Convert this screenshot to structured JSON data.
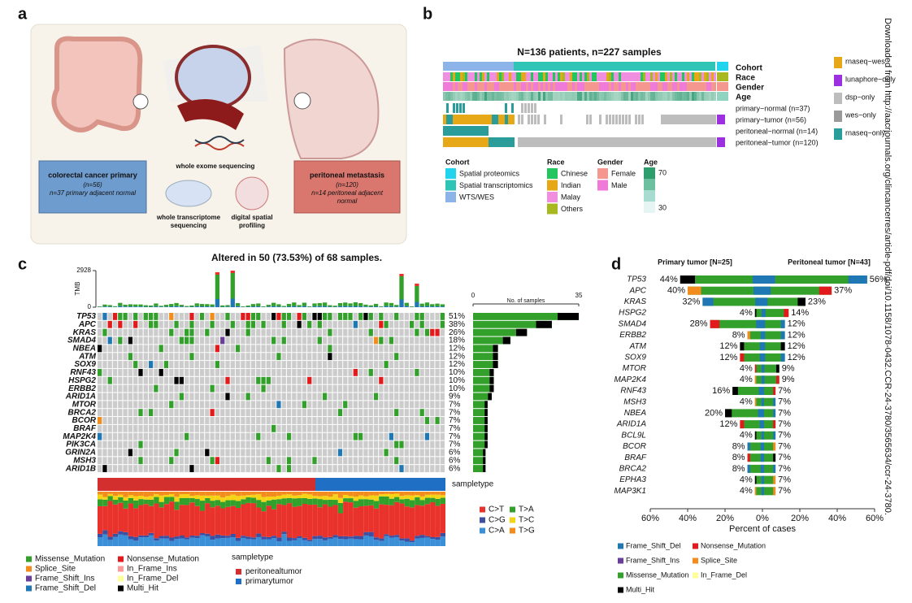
{
  "side_note": "Downloaded from http://aacrjournals.org/clincancerres/article-pdf/doi/10.1158/1078-0432.CCR-24-3780/3565634/ccr-24-3780.",
  "panel_a": {
    "label": "a",
    "steps": [
      [
        "whole exome sequencing"
      ],
      [
        "whole transcriptome",
        "sequencing"
      ],
      [
        "digital spatial",
        "profiling"
      ]
    ],
    "primary": {
      "title": "colorectal cancer primary",
      "lines": [
        "(n=56)",
        "n=37 primary adjacent normal"
      ]
    },
    "metastasis": {
      "title": "peritoneal metastasis",
      "lines": [
        "(n=120)",
        "n=14 peritoneal adjacent",
        "normal"
      ]
    }
  },
  "panel_b": {
    "label": "b",
    "title": "N=136 patients, n=227 samples",
    "tracks": [
      "Cohort",
      "Race",
      "Gender",
      "Age"
    ],
    "rows": [
      "primary−normal (n=37)",
      "primary−tumor (n=56)",
      "peritoneal−normal (n=14)",
      "peritoneal−tumor (n=120)"
    ],
    "assays": [
      {
        "name": "rnaseq−wes",
        "color": "#e6a817"
      },
      {
        "name": "lunaphore−only",
        "color": "#9b30e0"
      },
      {
        "name": "dsp−only",
        "color": "#bdbdbd"
      },
      {
        "name": "wes−only",
        "color": "#9a9a9a"
      },
      {
        "name": "rnaseq−only",
        "color": "#2a9d9a"
      }
    ],
    "legends": [
      {
        "title": "Cohort",
        "items": [
          {
            "name": "Spatial proteomics",
            "color": "#22d3ee"
          },
          {
            "name": "Spatial transcriptomics",
            "color": "#2ec4b6"
          },
          {
            "name": "WTS/WES",
            "color": "#8db4e8"
          }
        ]
      },
      {
        "title": "Race",
        "items": [
          {
            "name": "Chinese",
            "color": "#22c55e"
          },
          {
            "name": "Indian",
            "color": "#e6a817"
          },
          {
            "name": "Malay",
            "color": "#f08ee0"
          },
          {
            "name": "Others",
            "color": "#a8b820"
          }
        ]
      },
      {
        "title": "Gender",
        "items": [
          {
            "name": "Female",
            "color": "#f4978e"
          },
          {
            "name": "Male",
            "color": "#f07ad8"
          }
        ]
      }
    ],
    "age": {
      "title": "Age",
      "ticks": [
        70,
        30
      ]
    }
  },
  "panel_c": {
    "label": "c",
    "title": "Altered in 50 (73.53%) of 68 samples.",
    "tmb_label": "TMB",
    "tmb_ticks": [
      0,
      2928
    ],
    "samples_label": "No. of samples",
    "samples_ticks": [
      0,
      35
    ],
    "genes": [
      "TP53",
      "APC",
      "KRAS",
      "SMAD4",
      "NBEA",
      "ATM",
      "SOX9",
      "RNF43",
      "HSPG2",
      "ERBB2",
      "ARID1A",
      "MTOR",
      "BRCA2",
      "BCOR",
      "BRAF",
      "MAP2K4",
      "PIK3CA",
      "GRIN2A",
      "MSH3",
      "ARID1B"
    ],
    "percent": [
      51,
      38,
      26,
      18,
      12,
      12,
      12,
      10,
      10,
      10,
      9,
      7,
      7,
      7,
      7,
      7,
      7,
      6,
      6,
      6
    ],
    "percent_labels": [
      "51%",
      "38%",
      "26%",
      "18%",
      "12%",
      "12%",
      "12%",
      "10%",
      "10%",
      "10%",
      "9%",
      "7%",
      "7%",
      "7%",
      "7%",
      "7%",
      "7%",
      "6%",
      "6%",
      "6%"
    ],
    "sampletype_label": "sampletype",
    "sampletypes": [
      {
        "name": "peritonealtumor",
        "color": "#d32f2f"
      },
      {
        "name": "primarytumor",
        "color": "#1f6fc4"
      }
    ],
    "spectrum": [
      {
        "name": "C>T",
        "color": "#e8322b"
      },
      {
        "name": "C>G",
        "color": "#3c4fa0"
      },
      {
        "name": "C>A",
        "color": "#3a8fd6"
      },
      {
        "name": "T>A",
        "color": "#33a02c"
      },
      {
        "name": "T>C",
        "color": "#f5d416"
      },
      {
        "name": "T>G",
        "color": "#f28c1c"
      }
    ],
    "variants": [
      {
        "name": "Missense_Mutation",
        "color": "#33a02c"
      },
      {
        "name": "Splice_Site",
        "color": "#f28c1c"
      },
      {
        "name": "Frame_Shift_Ins",
        "color": "#6a3d9a"
      },
      {
        "name": "Frame_Shift_Del",
        "color": "#1f78b4"
      },
      {
        "name": "Nonsense_Mutation",
        "color": "#e31a1c"
      },
      {
        "name": "In_Frame_Ins",
        "color": "#fb9a99"
      },
      {
        "name": "In_Frame_Del",
        "color": "#ffff99"
      },
      {
        "name": "Multi_Hit",
        "color": "#000000"
      }
    ]
  },
  "panel_d": {
    "label": "d",
    "left_title": "Primary tumor [N=25]",
    "right_title": "Peritoneal tumor [N=43]",
    "genes": [
      "TP53",
      "APC",
      "KRAS",
      "HSPG2",
      "SMAD4",
      "ERBB2",
      "ATM",
      "SOX9",
      "MTOR",
      "MAP2K4",
      "RNF43",
      "MSH3",
      "NBEA",
      "ARID1A",
      "BCL9L",
      "BCOR",
      "BRAF",
      "BRCA2",
      "EPHA3",
      "MAP3K1"
    ],
    "primary": [
      44,
      40,
      32,
      4,
      28,
      8,
      12,
      12,
      4,
      4,
      16,
      4,
      20,
      12,
      4,
      8,
      8,
      8,
      4,
      4
    ],
    "primary_labels": [
      "44%",
      "40%",
      "32%",
      "4%",
      "28%",
      "8%",
      "12%",
      "12%",
      "4%",
      "4%",
      "16%",
      "4%",
      "20%",
      "12%",
      "4%",
      "8%",
      "8%",
      "8%",
      "4%",
      "4%"
    ],
    "peritoneal": [
      56,
      37,
      23,
      14,
      12,
      12,
      12,
      12,
      9,
      9,
      7,
      7,
      7,
      7,
      7,
      7,
      7,
      7,
      7,
      7
    ],
    "peritoneal_labels": [
      "56%",
      "37%",
      "23%",
      "14%",
      "12%",
      "12%",
      "12%",
      "12%",
      "9%",
      "9%",
      "7%",
      "7%",
      "7%",
      "7%",
      "7%",
      "7%",
      "7%",
      "7%",
      "7%",
      "7%"
    ],
    "xticks": [
      {
        "value": -60,
        "label": "60%"
      },
      {
        "value": -40,
        "label": "40%"
      },
      {
        "value": -20,
        "label": "20%"
      },
      {
        "value": 0,
        "label": "0%"
      },
      {
        "value": 20,
        "label": "20%"
      },
      {
        "value": 40,
        "label": "40%"
      },
      {
        "value": 60,
        "label": "60%"
      }
    ],
    "xlim": [
      -60,
      60
    ],
    "xlabel": "Percent of cases",
    "legend": [
      {
        "name": "Frame_Shift_Del",
        "color": "#1f78b4"
      },
      {
        "name": "Nonsense_Mutation",
        "color": "#e31a1c"
      },
      {
        "name": "Frame_Shift_Ins",
        "color": "#6a3d9a"
      },
      {
        "name": "Splice_Site",
        "color": "#f28c1c"
      },
      {
        "name": "Missense_Mutation",
        "color": "#33a02c"
      },
      {
        "name": "In_Frame_Del",
        "color": "#ffff99"
      },
      {
        "name": "Multi_Hit",
        "color": "#000000"
      }
    ]
  }
}
